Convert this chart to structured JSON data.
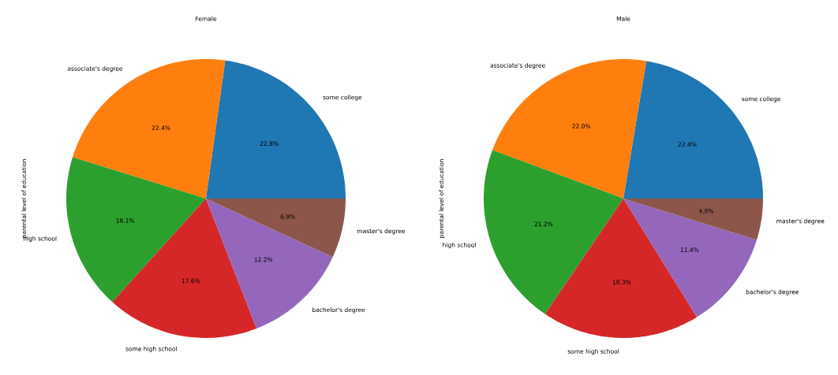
{
  "chart_data": [
    {
      "type": "pie",
      "title": "Female",
      "ylabel": "parental level of education",
      "categories": [
        "some college",
        "associate's degree",
        "high school",
        "some high school",
        "bachelor's degree",
        "master's degree"
      ],
      "values": [
        22.8,
        22.4,
        18.1,
        17.6,
        12.2,
        6.9
      ],
      "colors": [
        "#1f77b4",
        "#ff7f0e",
        "#2ca02c",
        "#d62728",
        "#9467bd",
        "#8c564b"
      ],
      "value_labels": [
        "22.8%",
        "22.4%",
        "18.1%",
        "17.6%",
        "12.2%",
        "6.9%"
      ]
    },
    {
      "type": "pie",
      "title": "Male",
      "ylabel": "parental level of education",
      "categories": [
        "some college",
        "associate's degree",
        "high school",
        "some high school",
        "bachelor's degree",
        "master's degree"
      ],
      "values": [
        22.4,
        22.0,
        21.2,
        18.3,
        11.4,
        4.8
      ],
      "colors": [
        "#1f77b4",
        "#ff7f0e",
        "#2ca02c",
        "#d62728",
        "#9467bd",
        "#8c564b"
      ],
      "value_labels": [
        "22.4%",
        "22.0%",
        "21.2%",
        "18.3%",
        "11.4%",
        "4.8%"
      ]
    }
  ]
}
